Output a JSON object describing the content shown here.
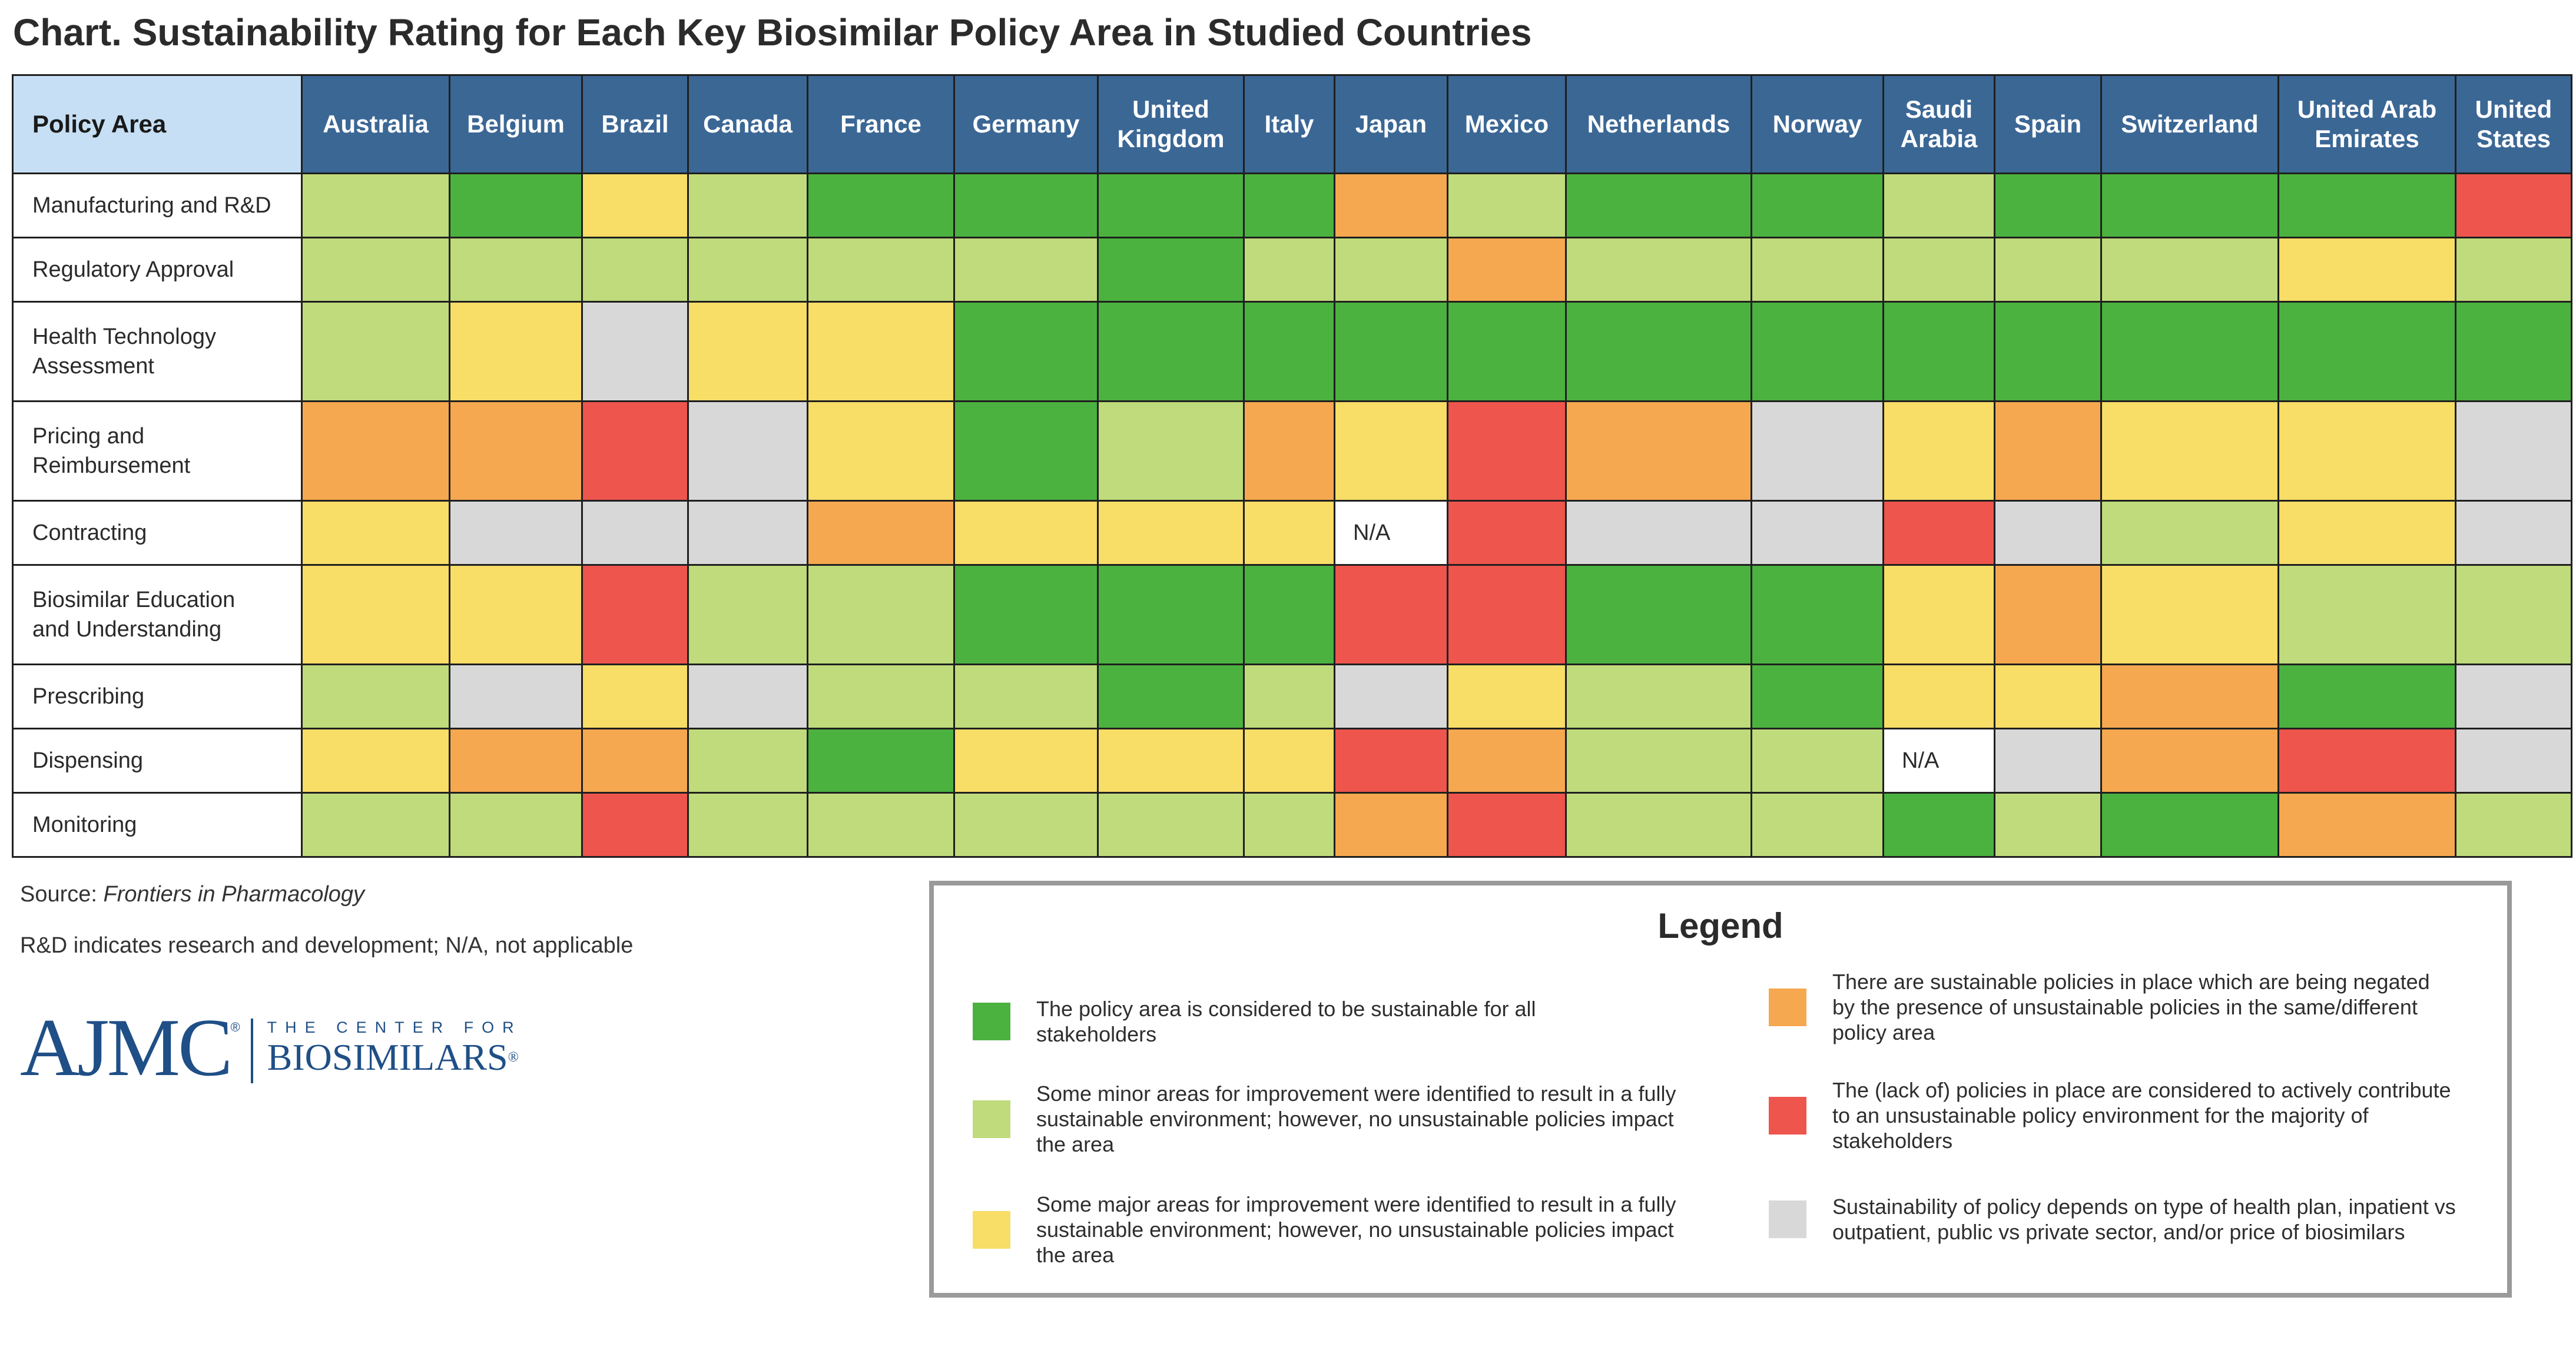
{
  "title": "Chart. Sustainability Rating for Each Key Biosimilar Policy Area in Studied Countries",
  "colors": {
    "G": "#4bb23f",
    "L": "#bfdb7b",
    "Y": "#f8dd67",
    "O": "#f5a84f",
    "R": "#ee554d",
    "X": "#d8d8d8",
    "N": "#ffffff",
    "header_bg": "#3b6795",
    "corner_bg": "#c6dff4"
  },
  "chart_data": {
    "type": "table",
    "title": "Chart. Sustainability Rating for Each Key Biosimilar Policy Area in Studied Countries",
    "row_header_label": "Policy Area",
    "columns": [
      "Australia",
      "Belgium",
      "Brazil",
      "Canada",
      "France",
      "Germany",
      "United Kingdom",
      "Italy",
      "Japan",
      "Mexico",
      "Netherlands",
      "Norway",
      "Saudi Arabia",
      "Spain",
      "Switzerland",
      "United Arab Emirates",
      "United States"
    ],
    "rows": [
      {
        "label": "Manufacturing and R&D",
        "ratings": [
          "L",
          "G",
          "Y",
          "L",
          "G",
          "G",
          "G",
          "G",
          "O",
          "L",
          "G",
          "G",
          "L",
          "G",
          "G",
          "G",
          "R"
        ]
      },
      {
        "label": "Regulatory Approval",
        "ratings": [
          "L",
          "L",
          "L",
          "L",
          "L",
          "L",
          "G",
          "L",
          "L",
          "O",
          "L",
          "L",
          "L",
          "L",
          "L",
          "Y",
          "L"
        ]
      },
      {
        "label": "Health Technology Assessment",
        "ratings": [
          "L",
          "Y",
          "X",
          "Y",
          "Y",
          "G",
          "G",
          "G",
          "G",
          "G",
          "G",
          "G",
          "G",
          "G",
          "G",
          "G",
          "G"
        ]
      },
      {
        "label": "Pricing and Reimbursement",
        "ratings": [
          "O",
          "O",
          "R",
          "X",
          "Y",
          "G",
          "L",
          "O",
          "Y",
          "R",
          "O",
          "X",
          "Y",
          "O",
          "Y",
          "Y",
          "X"
        ]
      },
      {
        "label": "Contracting",
        "ratings": [
          "Y",
          "X",
          "X",
          "X",
          "O",
          "Y",
          "Y",
          "Y",
          "N",
          "R",
          "X",
          "X",
          "R",
          "X",
          "L",
          "Y",
          "X"
        ]
      },
      {
        "label": "Biosimilar Education and Understanding",
        "ratings": [
          "Y",
          "Y",
          "R",
          "L",
          "L",
          "G",
          "G",
          "G",
          "R",
          "R",
          "G",
          "G",
          "Y",
          "O",
          "Y",
          "L",
          "L"
        ]
      },
      {
        "label": "Prescribing",
        "ratings": [
          "L",
          "X",
          "Y",
          "X",
          "L",
          "L",
          "G",
          "L",
          "X",
          "Y",
          "L",
          "G",
          "Y",
          "Y",
          "O",
          "G",
          "X"
        ]
      },
      {
        "label": "Dispensing",
        "ratings": [
          "Y",
          "O",
          "O",
          "L",
          "G",
          "Y",
          "Y",
          "Y",
          "R",
          "O",
          "L",
          "L",
          "N",
          "X",
          "O",
          "R",
          "X"
        ]
      },
      {
        "label": "Monitoring",
        "ratings": [
          "L",
          "L",
          "R",
          "L",
          "L",
          "L",
          "L",
          "L",
          "O",
          "R",
          "L",
          "L",
          "G",
          "L",
          "G",
          "O",
          "L"
        ]
      }
    ],
    "na_label": "N/A",
    "legend": [
      {
        "key": "G",
        "label": "The policy area is considered to be sustainable for all stakeholders"
      },
      {
        "key": "L",
        "label": "Some minor areas for improvement were identified to result in a fully sustainable environment; however, no unsustainable policies impact the area"
      },
      {
        "key": "Y",
        "label": "Some major areas for improvement were identified to result in a fully sustainable environment; however, no unsustainable policies impact the area"
      },
      {
        "key": "O",
        "label": "There are sustainable policies in place which are being negated by the presence of unsustainable policies in the same/different policy area"
      },
      {
        "key": "R",
        "label": "The (lack of) policies in place are considered to actively contribute to an unsustainable policy environment for the majority of stakeholders"
      },
      {
        "key": "X",
        "label": "Sustainability of policy depends on type of health plan, inpatient vs outpatient, public vs private sector, and/or price of biosimilars"
      }
    ]
  },
  "legend_title": "Legend",
  "source_prefix": "Source: ",
  "source_name": "Frontiers in Pharmacology",
  "abbrev_note": "R&D indicates research and development; N/A, not applicable",
  "logo": {
    "ajmc": "AJMC",
    "reg": "®",
    "center_for": "THE CENTER FOR",
    "biosimilars": "BIOSIMILARS",
    "biosimilars_reg": "®"
  }
}
